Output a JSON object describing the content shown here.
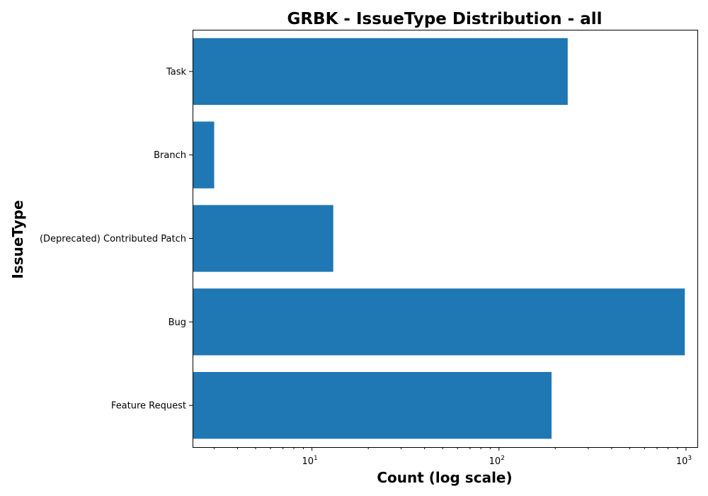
{
  "chart_data": {
    "type": "bar",
    "orientation": "horizontal",
    "title": "GRBK - IssueType Distribution - all",
    "xlabel": "Count (log scale)",
    "ylabel": "IssueType",
    "x_scale": "log",
    "xlim": [
      2.3,
      1150
    ],
    "x_ticks": [
      {
        "value": 10,
        "base": "10",
        "exp": "1"
      },
      {
        "value": 100,
        "base": "10",
        "exp": "2"
      },
      {
        "value": 1000,
        "base": "10",
        "exp": "3"
      }
    ],
    "categories": [
      "Task",
      "Branch",
      "(Deprecated) Contributed Patch",
      "Bug",
      "Feature Request"
    ],
    "values": [
      233,
      3,
      13,
      985,
      191
    ],
    "bar_color": "#1f77b4",
    "grid": false,
    "legend": "none"
  }
}
